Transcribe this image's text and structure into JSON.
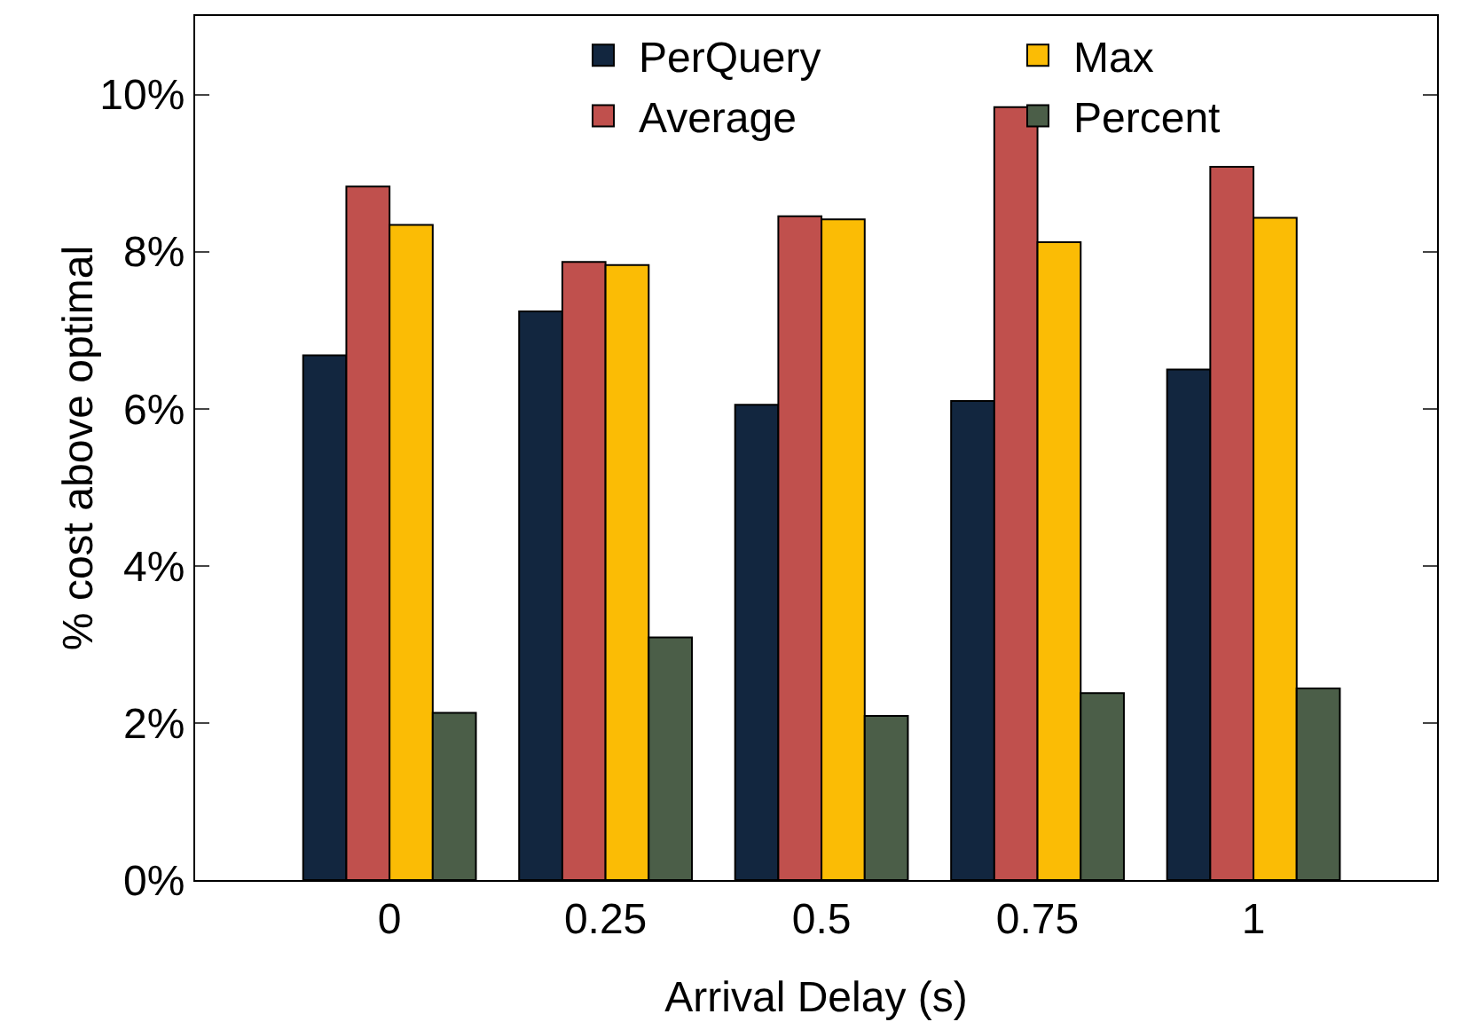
{
  "chart_data": {
    "type": "bar",
    "xlabel": "Arrival Delay (s)",
    "ylabel": "% cost above optimal",
    "categories": [
      "0",
      "0.25",
      "0.5",
      "0.75",
      "1"
    ],
    "series": [
      {
        "name": "PerQuery",
        "color": "#12263f",
        "values": [
          6.68,
          7.24,
          6.05,
          6.1,
          6.5
        ]
      },
      {
        "name": "Average",
        "color": "#c0504d",
        "values": [
          8.83,
          7.87,
          8.45,
          9.84,
          9.08
        ]
      },
      {
        "name": "Max",
        "color": "#fbbc05",
        "values": [
          8.34,
          7.83,
          8.41,
          8.12,
          8.43
        ]
      },
      {
        "name": "Percent",
        "color": "#4b5e48",
        "values": [
          2.13,
          3.09,
          2.09,
          2.38,
          2.44
        ]
      }
    ],
    "ylim": [
      0,
      11
    ],
    "yticks": [
      {
        "value": 0,
        "label": "0%"
      },
      {
        "value": 2,
        "label": "2%"
      },
      {
        "value": 4,
        "label": "4%"
      },
      {
        "value": 6,
        "label": "6%"
      },
      {
        "value": 8,
        "label": "8%"
      },
      {
        "value": 10,
        "label": "10%"
      }
    ],
    "grid": false,
    "legend": "top"
  }
}
